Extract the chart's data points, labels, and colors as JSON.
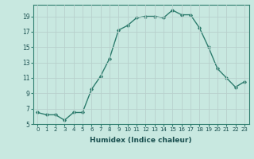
{
  "x": [
    0,
    1,
    2,
    3,
    4,
    5,
    6,
    7,
    8,
    9,
    10,
    11,
    12,
    13,
    14,
    15,
    16,
    17,
    18,
    19,
    20,
    21,
    22,
    23
  ],
  "y": [
    6.5,
    6.2,
    6.2,
    5.5,
    6.5,
    6.5,
    9.5,
    11.2,
    13.5,
    17.2,
    17.8,
    18.8,
    19.0,
    19.0,
    18.8,
    19.8,
    19.2,
    19.2,
    17.5,
    15.0,
    12.2,
    11.0,
    9.8,
    10.5
  ],
  "line_color": "#2e7d6e",
  "marker": "D",
  "marker_size": 1.8,
  "bg_color": "#c8e8e0",
  "grid_color": "#b8d0cc",
  "tick_color": "#2e7d6e",
  "xlabel": "Humidex (Indice chaleur)",
  "xlabel_fontsize": 6.5,
  "ylim": [
    5,
    20.5
  ],
  "yticks": [
    5,
    7,
    9,
    11,
    13,
    15,
    17,
    19
  ],
  "xticks": [
    0,
    1,
    2,
    3,
    4,
    5,
    6,
    7,
    8,
    9,
    10,
    11,
    12,
    13,
    14,
    15,
    16,
    17,
    18,
    19,
    20,
    21,
    22,
    23
  ],
  "linewidth": 1.0,
  "label_color": "#1a5050",
  "tick_fontsize": 5.0,
  "ytick_fontsize": 5.5
}
